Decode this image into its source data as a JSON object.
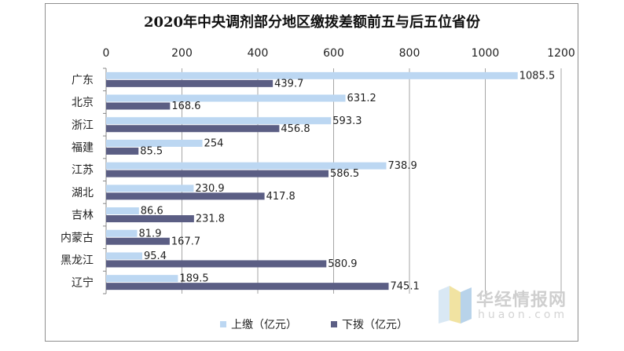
{
  "chart_data": {
    "type": "bar",
    "orientation": "horizontal",
    "title": "2020年中央调剂部分地区缴拨差额前五与后五位省份",
    "categories": [
      "广东",
      "北京",
      "浙江",
      "福建",
      "江苏",
      "湖北",
      "吉林",
      "内蒙古",
      "黑龙江",
      "辽宁"
    ],
    "series": [
      {
        "name": "上缴（亿元）",
        "color": "#bcd7f2",
        "values": [
          1085.5,
          631.2,
          593.3,
          254,
          738.9,
          230.9,
          86.6,
          81.9,
          95.4,
          189.5
        ],
        "labels": [
          "1085.5",
          "631.2",
          "593.3",
          "254",
          "738.9",
          "230.9",
          "86.6",
          "81.9",
          "95.4",
          "189.5"
        ]
      },
      {
        "name": "下拨（亿元）",
        "color": "#5b5e84",
        "values": [
          439.7,
          168.6,
          456.8,
          85.5,
          586.5,
          417.8,
          231.8,
          167.7,
          580.9,
          745.1
        ],
        "labels": [
          "439.7",
          "168.6",
          "456.8",
          "85.5",
          "586.5",
          "417.8",
          "231.8",
          "167.7",
          "580.9",
          "745.1"
        ]
      }
    ],
    "xlim": [
      0,
      1200
    ],
    "xticks": [
      "0",
      "200",
      "400",
      "600",
      "800",
      "1000",
      "1200"
    ],
    "xlabel": "",
    "ylabel": "",
    "grid": true,
    "legend": "bottom"
  },
  "watermark": {
    "name": "华经情报网",
    "url": "huaon.com"
  },
  "colors": {
    "grid": "#a6a6a6",
    "axis": "#888888",
    "text": "#222222",
    "watermark_light": "#d9e8f4",
    "watermark_yellow": "#f1e3a2",
    "watermark_blue": "#b8d3ea"
  }
}
